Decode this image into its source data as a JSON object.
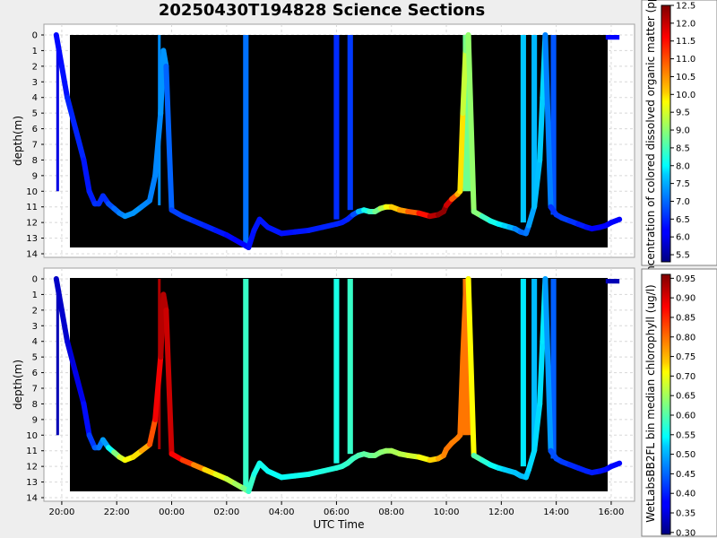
{
  "title": "20250430T194828 Science Sections",
  "chart_data": [
    {
      "type": "heatmap",
      "panel": "top",
      "ylabel": "depth(m)",
      "ylim": [
        0,
        14
      ],
      "yticks": [
        "0",
        "1",
        "2",
        "3",
        "4",
        "5",
        "6",
        "7",
        "8",
        "9",
        "10",
        "11",
        "12",
        "13",
        "14"
      ],
      "colorbar": {
        "label": "concentration of colored dissolved organic matter (ppb)",
        "range": [
          5.3,
          12.5
        ],
        "ticks": [
          "5.5",
          "6.0",
          "6.5",
          "7.0",
          "7.5",
          "8.0",
          "8.5",
          "9.0",
          "9.5",
          "10.0",
          "10.5",
          "11.0",
          "11.5",
          "12.0",
          "12.5"
        ],
        "tick_values": [
          5.5,
          6.0,
          6.5,
          7.0,
          7.5,
          8.0,
          8.5,
          9.0,
          9.5,
          10.0,
          10.5,
          11.0,
          11.5,
          12.0,
          12.5
        ]
      },
      "track": {
        "time_h": [
          19.8,
          20.0,
          20.2,
          20.5,
          20.8,
          21.0,
          21.2,
          21.35,
          21.5,
          21.7,
          21.9,
          22.1,
          22.3,
          22.6,
          22.9,
          23.2,
          23.4,
          23.6,
          23.7,
          23.8,
          24.0,
          24.4,
          24.8,
          25.2,
          25.6,
          26.0,
          26.3,
          26.6,
          26.8,
          27.0,
          27.2,
          27.5,
          28.0,
          28.5,
          29.0,
          29.5,
          30.0,
          30.2,
          30.4,
          30.6,
          30.8,
          31.0,
          31.2,
          31.4,
          31.6,
          31.8,
          32.0,
          32.3,
          32.6,
          33.0,
          33.4,
          33.7,
          33.9,
          34.0,
          34.2,
          34.4,
          34.5,
          34.6,
          34.7,
          34.8,
          35.0,
          35.3,
          35.6,
          35.9,
          36.1,
          36.3,
          36.5,
          36.7,
          36.9,
          37.0,
          37.2,
          37.4,
          37.5,
          37.6,
          37.8,
          38.0,
          38.2,
          38.5,
          38.8,
          39.1,
          39.3,
          39.6,
          39.8,
          40.0,
          40.3
        ],
        "depth_m": [
          0.0,
          2.0,
          4.0,
          6.0,
          8.0,
          10.0,
          10.8,
          10.8,
          10.3,
          10.8,
          11.1,
          11.4,
          11.6,
          11.4,
          11.0,
          10.6,
          9.0,
          5.0,
          1.0,
          2.0,
          11.2,
          11.6,
          11.9,
          12.2,
          12.5,
          12.8,
          13.1,
          13.4,
          13.6,
          12.5,
          11.8,
          12.3,
          12.7,
          12.6,
          12.5,
          12.3,
          12.1,
          12.0,
          11.8,
          11.5,
          11.3,
          11.2,
          11.3,
          11.3,
          11.1,
          11.0,
          11.0,
          11.2,
          11.3,
          11.4,
          11.6,
          11.5,
          11.3,
          10.9,
          10.5,
          10.2,
          10.0,
          5.0,
          1.0,
          0.0,
          11.3,
          11.6,
          11.9,
          12.1,
          12.2,
          12.3,
          12.4,
          12.6,
          12.7,
          12.2,
          11.0,
          8.0,
          4.0,
          0.0,
          11.0,
          11.5,
          11.7,
          11.9,
          12.1,
          12.3,
          12.4,
          12.3,
          12.2,
          12.0,
          11.8
        ],
        "values": [
          6.3,
          6.2,
          6.4,
          6.5,
          6.4,
          6.3,
          6.5,
          6.6,
          6.4,
          6.6,
          6.9,
          7.0,
          7.2,
          7.3,
          7.2,
          7.1,
          7.1,
          7.2,
          7.3,
          7.2,
          6.6,
          6.7,
          6.5,
          6.5,
          6.4,
          6.3,
          6.2,
          6.2,
          6.2,
          6.4,
          6.3,
          6.4,
          6.3,
          6.3,
          6.4,
          6.4,
          6.5,
          6.4,
          6.4,
          6.5,
          7.0,
          8.0,
          8.3,
          8.6,
          9.0,
          9.5,
          10.0,
          10.3,
          10.7,
          11.2,
          11.8,
          12.4,
          12.4,
          12.4,
          11.5,
          10.5,
          10.2,
          9.8,
          9.0,
          8.8,
          9.3,
          8.6,
          8.3,
          8.0,
          7.8,
          7.6,
          7.3,
          7.0,
          6.9,
          7.2,
          7.5,
          7.6,
          7.7,
          7.7,
          6.5,
          6.6,
          6.6,
          6.7,
          6.4,
          6.4,
          6.2,
          6.2,
          6.2,
          6.2,
          6.2
        ]
      },
      "casts": [
        {
          "t": 20.0,
          "v": 6.2,
          "extra": 0.02
        }
      ]
    },
    {
      "type": "heatmap",
      "panel": "bottom",
      "ylabel": "depth(m)",
      "xlabel": "UTC Time",
      "ylim": [
        0,
        14
      ],
      "yticks": [
        "0",
        "1",
        "2",
        "3",
        "4",
        "5",
        "6",
        "7",
        "8",
        "9",
        "10",
        "11",
        "12",
        "13",
        "14"
      ],
      "xticks": [
        "20:00",
        "22:00",
        "00:00",
        "02:00",
        "04:00",
        "06:00",
        "08:00",
        "10:00",
        "12:00",
        "14:00",
        "16:00"
      ],
      "xtick_hours": [
        20,
        22,
        24,
        26,
        28,
        30,
        32,
        34,
        36,
        38,
        40
      ],
      "xlim_hours": [
        19.35,
        40.85
      ],
      "colorbar": {
        "label": "WetLabsBB2FL bin median chlorophyll (ug/l)",
        "range": [
          0.295,
          0.96
        ],
        "ticks": [
          "0.30",
          "0.35",
          "0.40",
          "0.45",
          "0.50",
          "0.55",
          "0.60",
          "0.65",
          "0.70",
          "0.75",
          "0.80",
          "0.85",
          "0.90",
          "0.95"
        ],
        "tick_values": [
          0.3,
          0.35,
          0.4,
          0.45,
          0.5,
          0.55,
          0.6,
          0.65,
          0.7,
          0.75,
          0.8,
          0.85,
          0.9,
          0.95
        ]
      },
      "track": {
        "values": [
          0.34,
          0.34,
          0.35,
          0.36,
          0.37,
          0.4,
          0.43,
          0.45,
          0.46,
          0.5,
          0.6,
          0.66,
          0.7,
          0.72,
          0.74,
          0.8,
          0.85,
          0.92,
          0.93,
          0.92,
          0.9,
          0.86,
          0.82,
          0.76,
          0.71,
          0.68,
          0.66,
          0.64,
          0.6,
          0.56,
          0.56,
          0.55,
          0.55,
          0.55,
          0.56,
          0.56,
          0.57,
          0.57,
          0.58,
          0.58,
          0.59,
          0.6,
          0.61,
          0.62,
          0.63,
          0.64,
          0.65,
          0.66,
          0.67,
          0.69,
          0.72,
          0.76,
          0.78,
          0.8,
          0.8,
          0.79,
          0.8,
          0.8,
          0.8,
          0.8,
          0.62,
          0.58,
          0.56,
          0.54,
          0.52,
          0.51,
          0.51,
          0.5,
          0.5,
          0.52,
          0.52,
          0.52,
          0.53,
          0.53,
          0.43,
          0.43,
          0.42,
          0.41,
          0.4,
          0.4,
          0.4,
          0.39,
          0.39,
          0.38,
          0.38
        ]
      }
    }
  ],
  "vertical_casts": [
    {
      "t0": 19.8,
      "t1": 19.9,
      "d0": 0.0,
      "d1": 10.0,
      "v_top": 6.0,
      "v_bot": 0.33
    },
    {
      "t0": 23.5,
      "t1": 23.6,
      "d0": 0.0,
      "d1": 10.9,
      "v_top": 7.2,
      "v_bot": 0.93
    },
    {
      "t0": 26.6,
      "t1": 26.8,
      "d0": 0.0,
      "d1": 13.6,
      "v_top": 7.0,
      "v_bot": 0.58
    },
    {
      "t0": 29.9,
      "t1": 30.1,
      "d0": 0.0,
      "d1": 11.8,
      "v_top": 6.5,
      "v_bot": 0.56
    },
    {
      "t0": 30.4,
      "t1": 30.6,
      "d0": 0.0,
      "d1": 11.2,
      "v_top": 6.6,
      "v_bot": 0.58
    },
    {
      "t0": 34.6,
      "t1": 34.9,
      "d0": 0.0,
      "d1": 10.0,
      "v_top": 8.8,
      "v_bot": 0.8
    },
    {
      "t0": 36.7,
      "t1": 36.9,
      "d0": 0.0,
      "d1": 12.0,
      "v_top": 7.6,
      "v_bot": 0.53
    },
    {
      "t0": 37.1,
      "t1": 37.3,
      "d0": 0.0,
      "d1": 11.0,
      "v_top": 7.5,
      "v_bot": 0.5
    },
    {
      "t0": 37.8,
      "t1": 38.0,
      "d0": 0.0,
      "d1": 11.5,
      "v_top": 6.8,
      "v_bot": 0.44
    },
    {
      "t0": 39.8,
      "t1": 40.3,
      "d0": 0.0,
      "d1": 0.3,
      "v_top": 6.2,
      "v_bot": 0.33
    }
  ]
}
